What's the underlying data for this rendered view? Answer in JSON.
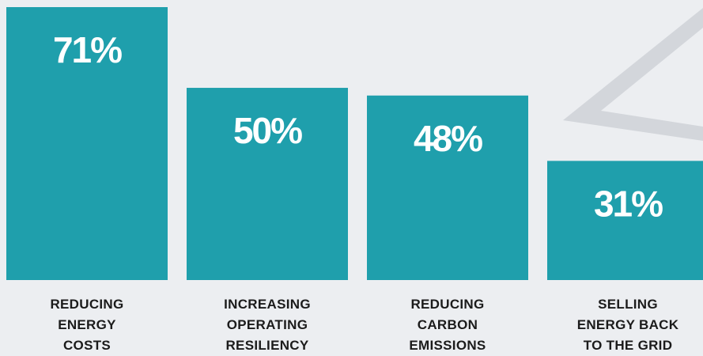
{
  "chart_data": {
    "type": "bar",
    "categories": [
      "REDUCING\nENERGY\nCOSTS",
      "INCREASING\nOPERATING\nRESILIENCY",
      "REDUCING\nCARBON\nEMISSIONS",
      "SELLING\nENERGY BACK\nTO THE GRID"
    ],
    "values": [
      71,
      50,
      48,
      31
    ],
    "value_labels": [
      "71%",
      "50%",
      "48%",
      "31%"
    ],
    "color": "#1f9fac"
  }
}
